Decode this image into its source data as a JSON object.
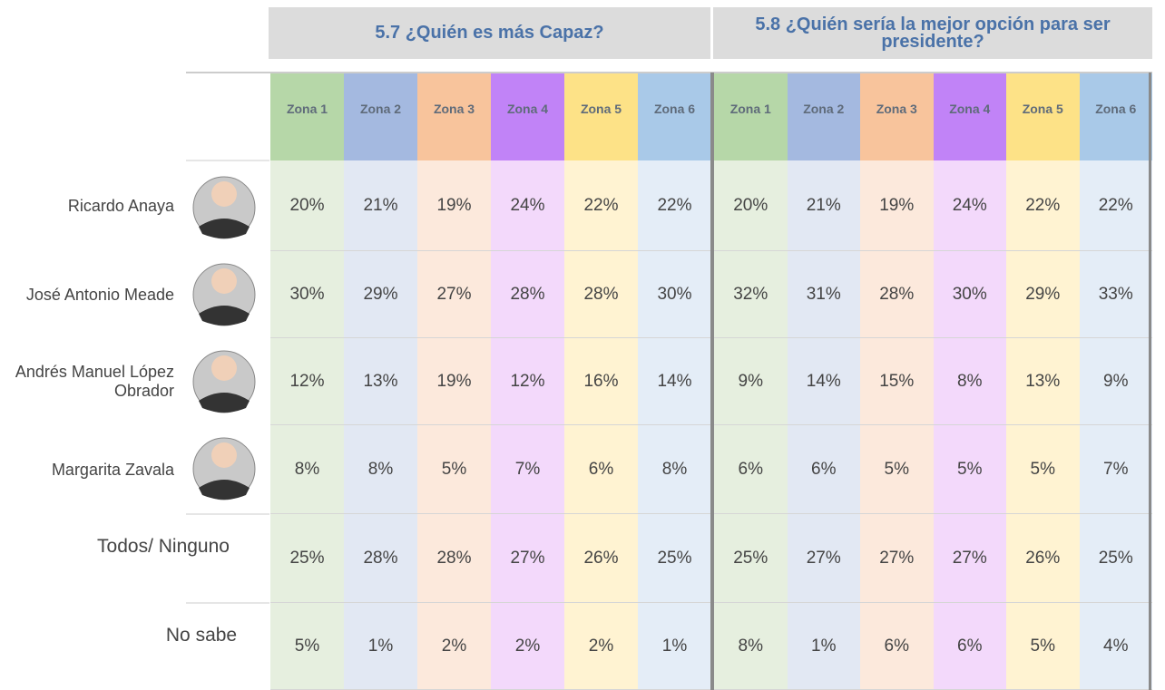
{
  "groups": [
    {
      "title": "5.7 ¿Quién es más Capaz?",
      "zones": [
        "Zona 1",
        "Zona 2",
        "Zona 3",
        "Zona 4",
        "Zona 5",
        "Zona 6"
      ]
    },
    {
      "title": "5.8 ¿Quién sería la mejor opción para ser presidente?",
      "zones": [
        "Zona 1",
        "Zona 2",
        "Zona 3",
        "Zona 4",
        "Zona 5",
        "Zona 6"
      ]
    }
  ],
  "rows": [
    {
      "name": "Ricardo Anaya",
      "values": [
        "20%",
        "21%",
        "19%",
        "24%",
        "22%",
        "22%",
        "20%",
        "21%",
        "19%",
        "24%",
        "22%",
        "22%"
      ]
    },
    {
      "name": "José Antonio Meade",
      "values": [
        "30%",
        "29%",
        "27%",
        "28%",
        "28%",
        "30%",
        "32%",
        "31%",
        "28%",
        "30%",
        "29%",
        "33%"
      ]
    },
    {
      "name": "Andrés Manuel López Obrador",
      "values": [
        "12%",
        "13%",
        "19%",
        "12%",
        "16%",
        "14%",
        "9%",
        "14%",
        "15%",
        "8%",
        "13%",
        "9%"
      ]
    },
    {
      "name": "Margarita Zavala",
      "values": [
        "8%",
        "8%",
        "5%",
        "7%",
        "6%",
        "8%",
        "6%",
        "6%",
        "5%",
        "5%",
        "5%",
        "7%"
      ]
    },
    {
      "name": "Todos/ Ninguno",
      "values": [
        "25%",
        "28%",
        "28%",
        "27%",
        "26%",
        "25%",
        "25%",
        "27%",
        "27%",
        "27%",
        "26%",
        "25%"
      ]
    },
    {
      "name": "No sabe",
      "values": [
        "5%",
        "1%",
        "2%",
        "2%",
        "2%",
        "1%",
        "8%",
        "1%",
        "6%",
        "6%",
        "5%",
        "4%"
      ]
    }
  ]
}
